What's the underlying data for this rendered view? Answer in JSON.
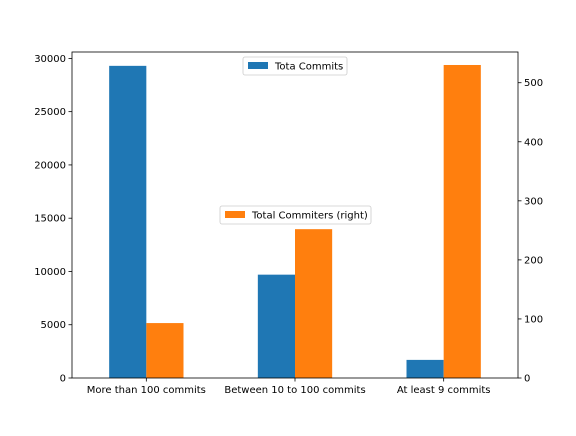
{
  "chart_data": {
    "type": "bar",
    "categories": [
      "More than 100 commits",
      "Between 10 to 100 commits",
      "At least 9 commits"
    ],
    "series": [
      {
        "name": "Tota Commits",
        "axis": "left",
        "values": [
          29300,
          9700,
          1700
        ],
        "color": "#1f77b4"
      },
      {
        "name": "Total Commiters (right)",
        "axis": "right",
        "values": [
          93,
          252,
          530
        ],
        "color": "#ff7f0e"
      }
    ],
    "y_left": {
      "ylim": [
        0,
        30600
      ],
      "ticks": [
        0,
        5000,
        10000,
        15000,
        20000,
        25000,
        30000
      ]
    },
    "y_right": {
      "ylim": [
        0,
        552
      ],
      "ticks": [
        0,
        100,
        200,
        300,
        400,
        500
      ]
    },
    "legends": [
      {
        "series": "Tota Commits",
        "placement": "upper center"
      },
      {
        "series": "Total Commiters (right)",
        "placement": "center"
      }
    ],
    "grid": false
  }
}
